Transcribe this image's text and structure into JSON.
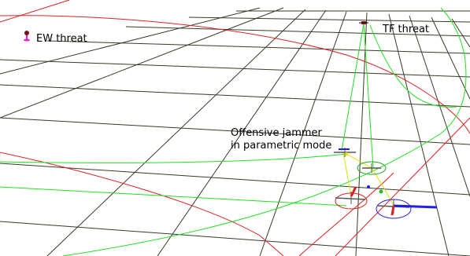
{
  "labels": {
    "ew_threat": "EW threat",
    "tf_threat": "TF threat",
    "jammer_line1": "Offensive jammer",
    "jammer_line2": "in parametric mode"
  },
  "colors": {
    "background": "#ffffff",
    "grid": "#3a3a28",
    "red_track": "#e02020",
    "green_track": "#20e020",
    "yellow": "#e0e000",
    "blue": "#2020e0",
    "magenta": "#e020e0"
  },
  "icons": {
    "ew_threat_marker": "ew-threat-marker-icon",
    "tf_threat_marker": "tf-threat-marker-icon",
    "aircraft": "aircraft-icon"
  }
}
